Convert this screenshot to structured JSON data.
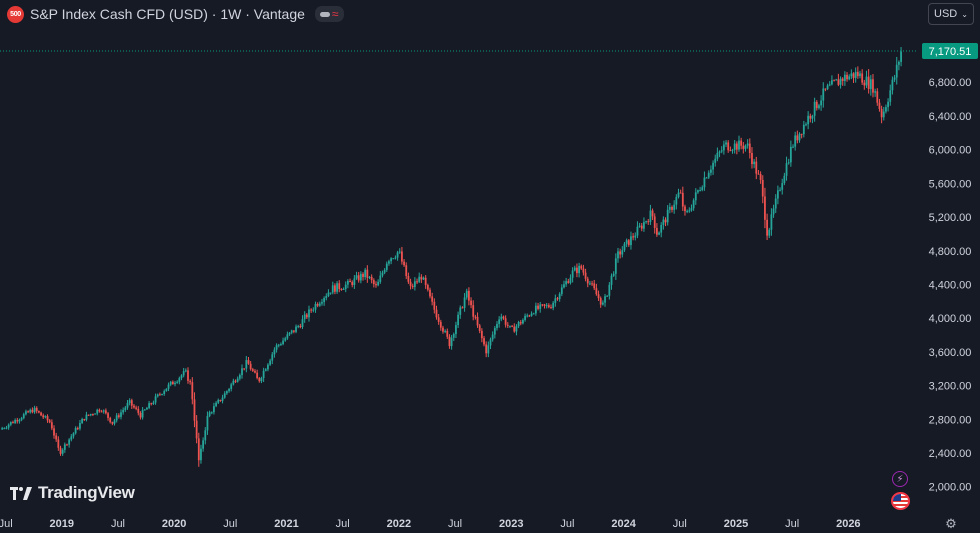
{
  "header": {
    "badge": "500",
    "title": "S&P Index Cash CFD (USD) · 1W · Vantage",
    "pill_icon": "wave-icon"
  },
  "currency": {
    "value": "USD"
  },
  "branding": {
    "name": "TradingView"
  },
  "chart_data": {
    "type": "candlestick",
    "title": "S&P Index Cash CFD (USD) · 1W · Vantage",
    "last_price": 7170.51,
    "last_price_label": "7,170.51",
    "colors": {
      "up": "#26a69a",
      "down": "#ef5350",
      "last": "#089981"
    },
    "ylim": [
      1700,
      7420
    ],
    "xlim": [
      2018.45,
      2026.62
    ],
    "y_ticks": [
      {
        "value": 2000,
        "label": "2,000.00"
      },
      {
        "value": 2400,
        "label": "2,400.00"
      },
      {
        "value": 2800,
        "label": "2,800.00"
      },
      {
        "value": 3200,
        "label": "3,200.00"
      },
      {
        "value": 3600,
        "label": "3,600.00"
      },
      {
        "value": 4000,
        "label": "4,000.00"
      },
      {
        "value": 4400,
        "label": "4,400.00"
      },
      {
        "value": 4800,
        "label": "4,800.00"
      },
      {
        "value": 5200,
        "label": "5,200.00"
      },
      {
        "value": 5600,
        "label": "5,600.00"
      },
      {
        "value": 6000,
        "label": "6,000.00"
      },
      {
        "value": 6400,
        "label": "6,400.00"
      },
      {
        "value": 6800,
        "label": "6,800.00"
      }
    ],
    "x_ticks": [
      {
        "value": 2018.5,
        "label": "Jul",
        "bold": false
      },
      {
        "value": 2019.0,
        "label": "2019",
        "bold": true
      },
      {
        "value": 2019.5,
        "label": "Jul",
        "bold": false
      },
      {
        "value": 2020.0,
        "label": "2020",
        "bold": true
      },
      {
        "value": 2020.5,
        "label": "Jul",
        "bold": false
      },
      {
        "value": 2021.0,
        "label": "2021",
        "bold": true
      },
      {
        "value": 2021.5,
        "label": "Jul",
        "bold": false
      },
      {
        "value": 2022.0,
        "label": "2022",
        "bold": true
      },
      {
        "value": 2022.5,
        "label": "Jul",
        "bold": false
      },
      {
        "value": 2023.0,
        "label": "2023",
        "bold": true
      },
      {
        "value": 2023.5,
        "label": "Jul",
        "bold": false
      },
      {
        "value": 2024.0,
        "label": "2024",
        "bold": true
      },
      {
        "value": 2024.5,
        "label": "Jul",
        "bold": false
      },
      {
        "value": 2025.0,
        "label": "2025",
        "bold": true
      },
      {
        "value": 2025.5,
        "label": "Jul",
        "bold": false
      },
      {
        "value": 2026.0,
        "label": "2026",
        "bold": true
      }
    ],
    "price_path": [
      [
        2018.45,
        2680
      ],
      [
        2018.75,
        2920
      ],
      [
        2018.9,
        2760
      ],
      [
        2018.98,
        2400
      ],
      [
        2019.2,
        2820
      ],
      [
        2019.35,
        2930
      ],
      [
        2019.45,
        2760
      ],
      [
        2019.6,
        3000
      ],
      [
        2019.7,
        2850
      ],
      [
        2019.9,
        3140
      ],
      [
        2020.1,
        3360
      ],
      [
        2020.15,
        3200
      ],
      [
        2020.22,
        2300
      ],
      [
        2020.3,
        2850
      ],
      [
        2020.45,
        3100
      ],
      [
        2020.65,
        3480
      ],
      [
        2020.75,
        3250
      ],
      [
        2020.9,
        3650
      ],
      [
        2021.1,
        3900
      ],
      [
        2021.25,
        4150
      ],
      [
        2021.4,
        4350
      ],
      [
        2021.55,
        4400
      ],
      [
        2021.7,
        4530
      ],
      [
        2021.8,
        4360
      ],
      [
        2021.9,
        4700
      ],
      [
        2022.0,
        4790
      ],
      [
        2022.1,
        4350
      ],
      [
        2022.2,
        4500
      ],
      [
        2022.3,
        4150
      ],
      [
        2022.45,
        3700
      ],
      [
        2022.6,
        4300
      ],
      [
        2022.7,
        3900
      ],
      [
        2022.78,
        3600
      ],
      [
        2022.9,
        4050
      ],
      [
        2023.0,
        3850
      ],
      [
        2023.2,
        4100
      ],
      [
        2023.35,
        4150
      ],
      [
        2023.55,
        4550
      ],
      [
        2023.62,
        4600
      ],
      [
        2023.75,
        4300
      ],
      [
        2023.82,
        4150
      ],
      [
        2023.95,
        4750
      ],
      [
        2024.1,
        5000
      ],
      [
        2024.25,
        5250
      ],
      [
        2024.3,
        5000
      ],
      [
        2024.5,
        5500
      ],
      [
        2024.55,
        5200
      ],
      [
        2024.75,
        5750
      ],
      [
        2024.9,
        6050
      ],
      [
        2025.1,
        6050
      ],
      [
        2025.22,
        5600
      ],
      [
        2025.28,
        5000
      ],
      [
        2025.4,
        5600
      ],
      [
        2025.5,
        6050
      ],
      [
        2025.65,
        6400
      ],
      [
        2025.8,
        6700
      ],
      [
        2025.95,
        6850
      ],
      [
        2026.08,
        6900
      ],
      [
        2026.22,
        6750
      ],
      [
        2026.3,
        6400
      ],
      [
        2026.42,
        6900
      ],
      [
        2026.47,
        7170.51
      ]
    ]
  }
}
